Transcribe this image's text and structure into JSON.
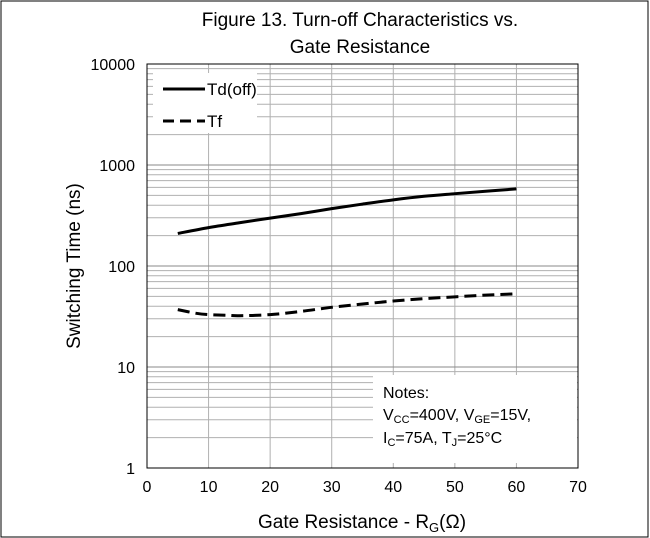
{
  "chart_data": {
    "type": "line",
    "title_line1": "Figure 13. Turn-off Characteristics  vs.",
    "title_line2": "Gate Resistance",
    "xlabel_main": "Gate Resistance - R",
    "xlabel_sub": "G",
    "xlabel_tail": "(Ω)",
    "ylabel": "Switching Time (ns)",
    "y_scale": "log",
    "xlim": [
      0,
      70
    ],
    "ylim": [
      1,
      10000
    ],
    "grid": true,
    "legend_position": "top-left",
    "x_ticks": [
      "0",
      "10",
      "20",
      "30",
      "40",
      "50",
      "60",
      "70"
    ],
    "y_ticks": [
      "1",
      "10",
      "100",
      "1000",
      "10000"
    ],
    "series": [
      {
        "name": "Td(off)",
        "style": "solid",
        "x": [
          5,
          10,
          15,
          20,
          25,
          30,
          35,
          40,
          45,
          50,
          55,
          60
        ],
        "y": [
          210,
          240,
          268,
          298,
          330,
          370,
          410,
          452,
          490,
          520,
          550,
          580
        ]
      },
      {
        "name": "Tf",
        "style": "dashed",
        "x": [
          5,
          8,
          10,
          13,
          15,
          20,
          25,
          30,
          35,
          40,
          45,
          50,
          55,
          60
        ],
        "y": [
          37,
          34,
          33,
          32.5,
          32.2,
          33,
          35.5,
          39,
          42,
          45,
          47.5,
          49.5,
          51.5,
          53
        ]
      }
    ],
    "notes": {
      "line1": "Notes:",
      "line2": [
        {
          "t": "V",
          "sub": false
        },
        {
          "t": "CC",
          "sub": true
        },
        {
          "t": "=400V, V",
          "sub": false
        },
        {
          "t": "GE",
          "sub": true
        },
        {
          "t": "=15V,",
          "sub": false
        }
      ],
      "line3": [
        {
          "t": "I",
          "sub": false
        },
        {
          "t": "C",
          "sub": true
        },
        {
          "t": "=75A, T",
          "sub": false
        },
        {
          "t": "J",
          "sub": true
        },
        {
          "t": "=25°C",
          "sub": false
        }
      ]
    },
    "colors": {
      "line": "#000000",
      "grid": "#b0b0b0",
      "background": "#ffffff"
    }
  }
}
